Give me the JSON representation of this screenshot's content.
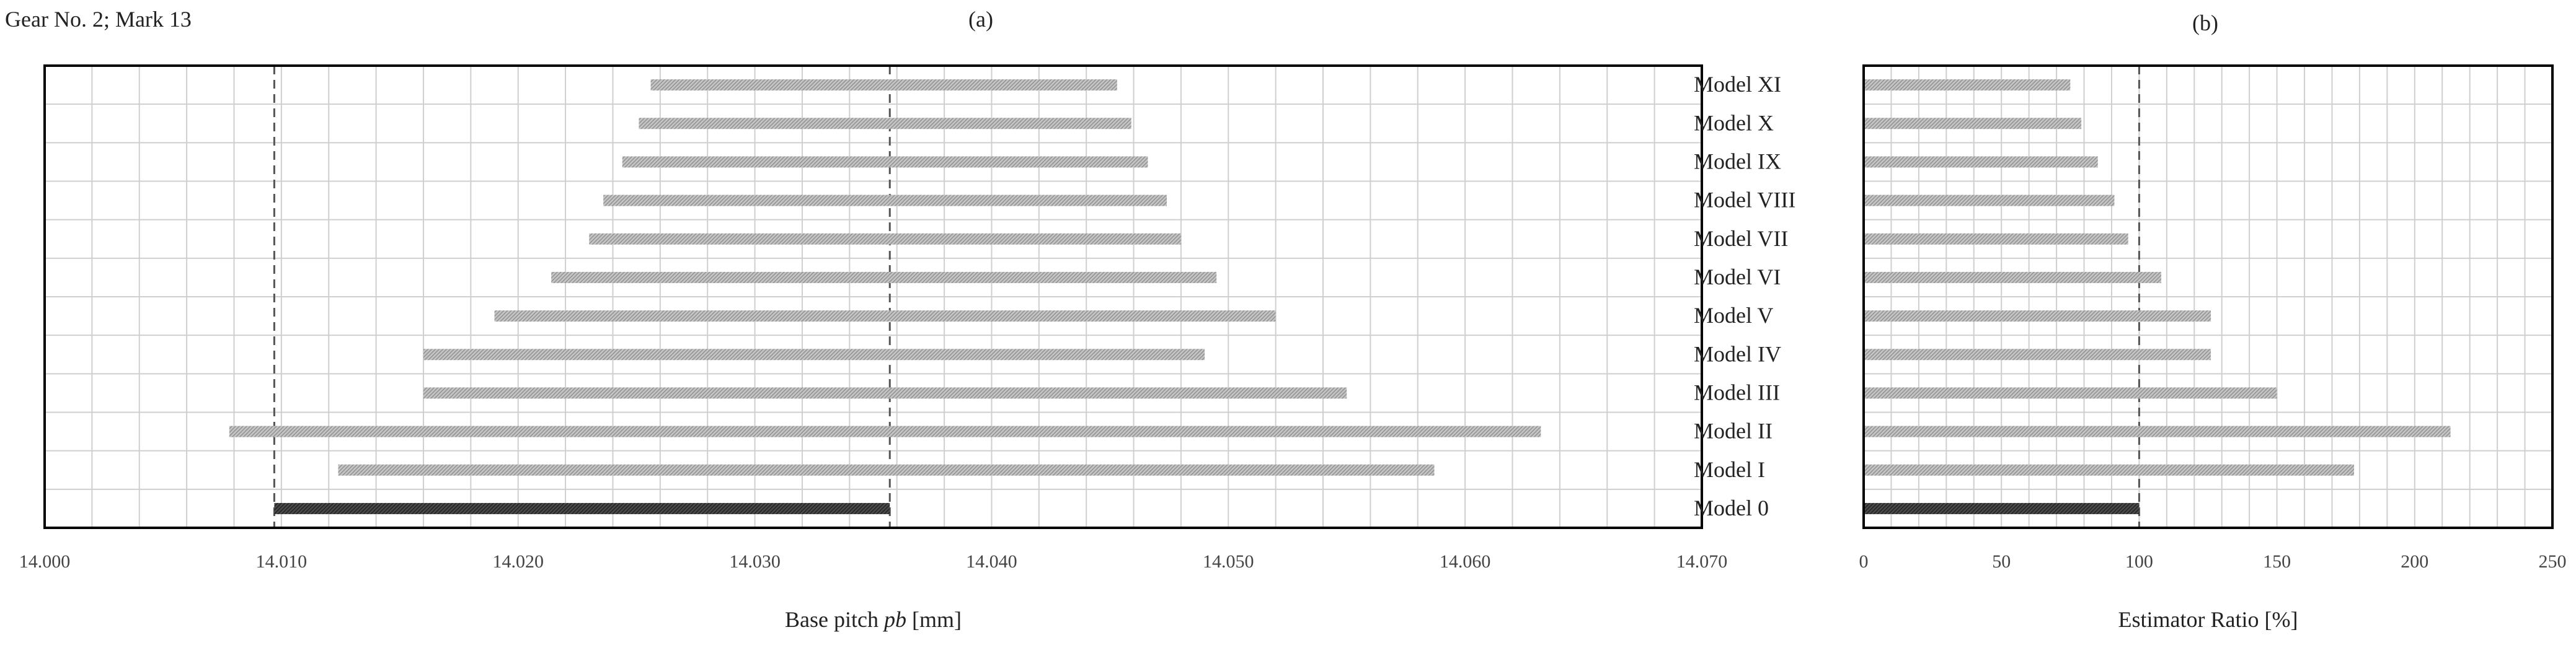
{
  "figure": {
    "header": "Gear No. 2; Mark 13",
    "panel_a_label": "(a)",
    "panel_b_label": "(b)"
  },
  "chart_data": [
    {
      "type": "bar",
      "subtype": "floating-range",
      "panel": "(a)",
      "xlabel_prefix": "Base pitch ",
      "xlabel_italic": "pb",
      "xlabel_suffix": " [mm]",
      "xlim": [
        14.0,
        14.07
      ],
      "xticks": [
        "14.000",
        "14.010",
        "14.020",
        "14.030",
        "14.040",
        "14.050",
        "14.060",
        "14.070"
      ],
      "grid": true,
      "categories": [
        "Model 0",
        "Model I",
        "Model II",
        "Model III",
        "Model IV",
        "Model V",
        "Model VI",
        "Model VII",
        "Model VIII",
        "Model IX",
        "Model X",
        "Model XI"
      ],
      "ranges": [
        [
          14.0097,
          14.0357
        ],
        [
          14.0124,
          14.0587
        ],
        [
          14.0078,
          14.0632
        ],
        [
          14.016,
          14.055
        ],
        [
          14.016,
          14.049
        ],
        [
          14.019,
          14.052
        ],
        [
          14.0214,
          14.0495
        ],
        [
          14.023,
          14.048
        ],
        [
          14.0236,
          14.0474
        ],
        [
          14.0244,
          14.0466
        ],
        [
          14.0251,
          14.0459
        ],
        [
          14.0256,
          14.0453
        ]
      ],
      "reference_lines": [
        14.0097,
        14.0357
      ]
    },
    {
      "type": "bar",
      "orientation": "horizontal",
      "panel": "(b)",
      "xlabel": "Estimator Ratio [%]",
      "xlim": [
        0,
        250
      ],
      "xticks": [
        "0",
        "50",
        "100",
        "150",
        "200",
        "250"
      ],
      "grid": true,
      "categories": [
        "Model 0",
        "Model I",
        "Model II",
        "Model III",
        "Model IV",
        "Model V",
        "Model VI",
        "Model VII",
        "Model VIII",
        "Model IX",
        "Model X",
        "Model XI"
      ],
      "values": [
        100,
        178,
        213,
        150,
        126,
        126,
        108,
        96,
        91,
        85,
        79,
        75
      ],
      "reference_lines": [
        100
      ]
    }
  ],
  "colors": {
    "bar_fill": "#b3b3b3",
    "baseline_bar_fill": "#3f3f3f",
    "grid": "#cfcfcf",
    "frame": "#000000",
    "reference_line": "#555555"
  }
}
